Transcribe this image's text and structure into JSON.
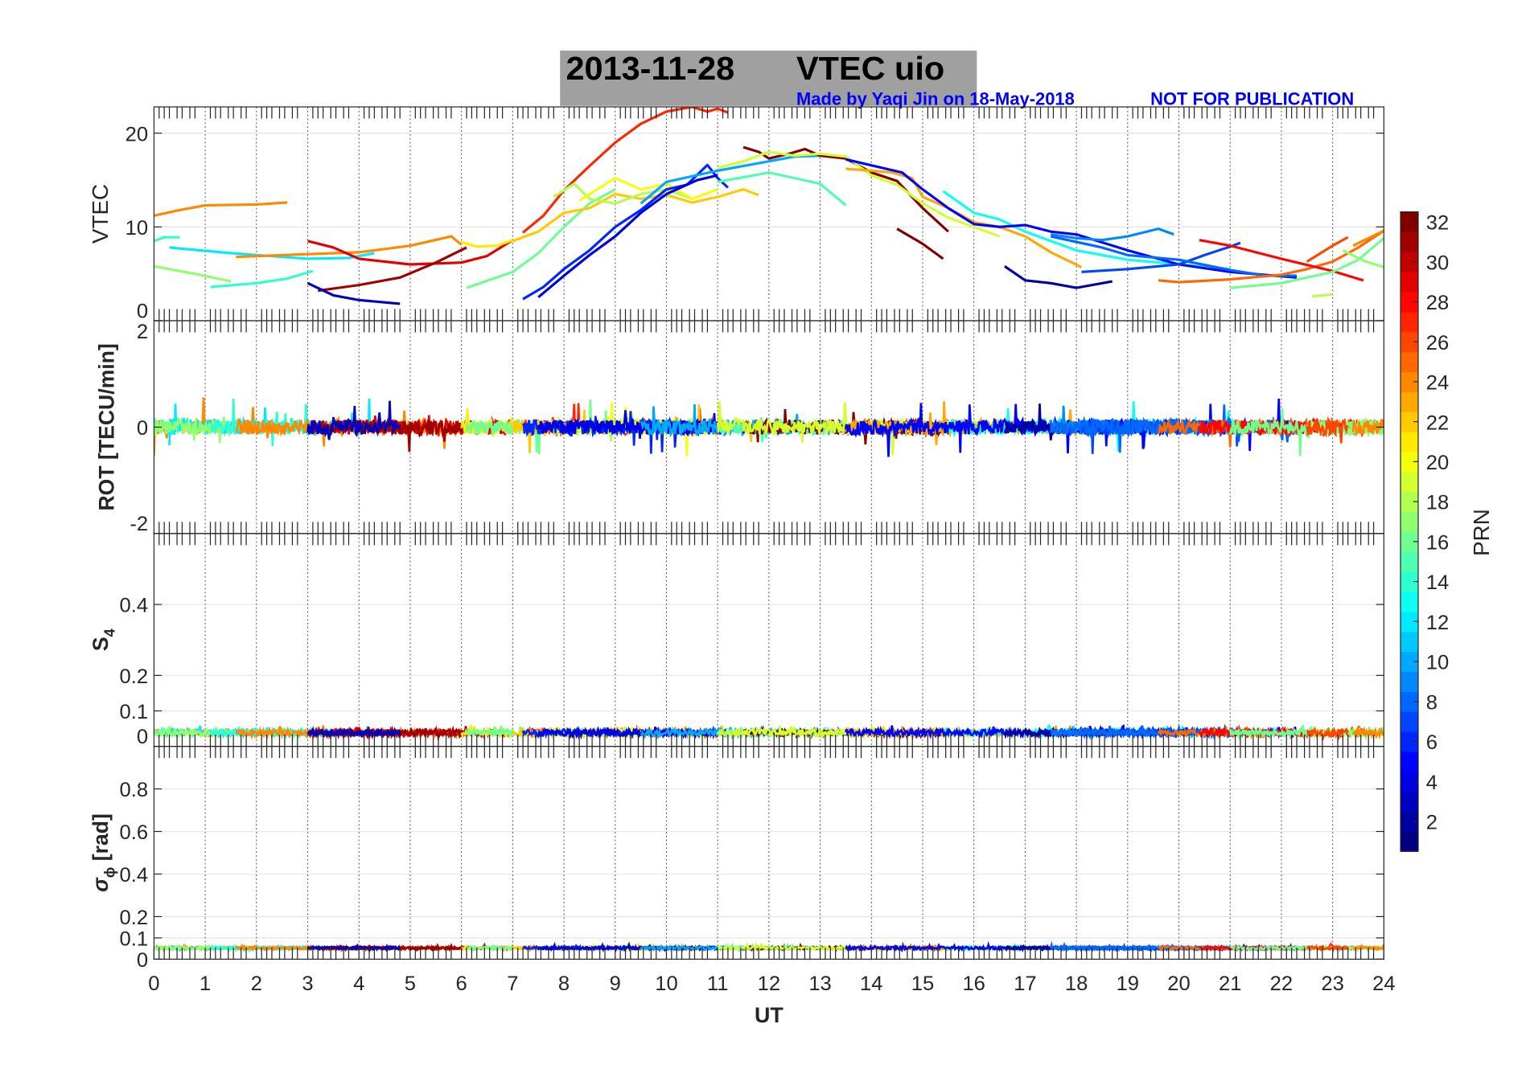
{
  "chart_data": {
    "type": "line",
    "title_date": "2013-11-28",
    "title_main": "VTEC  uio",
    "credit": "Made by Yaqi Jin on 18-May-2018",
    "notice": "NOT FOR PUBLICATION",
    "xlabel": "UT",
    "xlim": [
      0,
      24
    ],
    "xticks": [
      "0",
      "1",
      "2",
      "3",
      "4",
      "5",
      "6",
      "7",
      "8",
      "9",
      "10",
      "11",
      "12",
      "13",
      "14",
      "15",
      "16",
      "17",
      "18",
      "19",
      "20",
      "21",
      "22",
      "23",
      "24"
    ],
    "colorbar": {
      "label": "PRN",
      "range": [
        1,
        32
      ],
      "colormap": "jet",
      "ticks": [
        "2",
        "4",
        "6",
        "8",
        "10",
        "12",
        "14",
        "16",
        "18",
        "20",
        "22",
        "24",
        "26",
        "28",
        "30",
        "32"
      ]
    },
    "panels": [
      {
        "name": "vtec",
        "ylabel": "VTEC",
        "ylim": [
          0,
          22.8
        ],
        "yticks": [
          0,
          10,
          20
        ],
        "ytick_labels": [
          "0",
          "10",
          "20"
        ]
      },
      {
        "name": "rot",
        "ylabel": "ROT [TECU/min]",
        "ylim": [
          -2,
          2
        ],
        "yticks": [
          -2,
          0,
          2
        ],
        "ytick_labels": [
          "-2",
          "0",
          "2"
        ],
        "noise_amp": 0.14
      },
      {
        "name": "s4",
        "ylabel": "S",
        "ylabel_sub": "4",
        "ylim": [
          0,
          0.6
        ],
        "yticks": [
          0,
          0.1,
          0.2,
          0.4
        ],
        "ytick_labels": [
          "0",
          "0.1",
          "0.2",
          "0.4"
        ],
        "base": 0.035,
        "noise_amp": 0.012
      },
      {
        "name": "sigma",
        "ylabel": "σ",
        "ylabel_sub": "ϕ",
        "ylabel_unit": " [rad]",
        "ylim": [
          0,
          1
        ],
        "yticks": [
          0,
          0.1,
          0.2,
          0.4,
          0.6,
          0.8
        ],
        "ytick_labels": [
          "0",
          "0.1",
          "0.2",
          "0.4",
          "0.6",
          "0.8"
        ],
        "base": 0.05,
        "noise_amp": 0.008
      }
    ],
    "series": [
      {
        "prn": 24,
        "points": [
          [
            0,
            11.2
          ],
          [
            0.5,
            11.8
          ],
          [
            1,
            12.3
          ],
          [
            2,
            12.4
          ],
          [
            2.6,
            12.6
          ]
        ]
      },
      {
        "prn": 14,
        "points": [
          [
            0,
            8.5
          ],
          [
            0.2,
            8.9
          ],
          [
            0.5,
            8.9
          ]
        ]
      },
      {
        "prn": 12,
        "points": [
          [
            0.3,
            7.8
          ],
          [
            1.5,
            7.2
          ],
          [
            3,
            6.6
          ],
          [
            3.8,
            6.7
          ],
          [
            4.3,
            7.2
          ]
        ]
      },
      {
        "prn": 17,
        "points": [
          [
            0,
            5.8
          ],
          [
            0.8,
            5.0
          ],
          [
            1.5,
            4.2
          ]
        ]
      },
      {
        "prn": 14,
        "points": [
          [
            1.1,
            3.6
          ],
          [
            2,
            4.0
          ],
          [
            2.6,
            4.5
          ],
          [
            3.1,
            5.3
          ]
        ]
      },
      {
        "prn": 24,
        "points": [
          [
            1.6,
            6.8
          ],
          [
            3,
            7.1
          ],
          [
            4,
            7.3
          ],
          [
            5,
            8.0
          ],
          [
            5.8,
            9.0
          ],
          [
            6,
            8.1
          ]
        ]
      },
      {
        "prn": 29,
        "points": [
          [
            3,
            8.5
          ],
          [
            3.5,
            7.8
          ],
          [
            4,
            6.6
          ],
          [
            5,
            6.0
          ],
          [
            6,
            6.2
          ],
          [
            6.5,
            6.9
          ],
          [
            7,
            8.6
          ]
        ]
      },
      {
        "prn": 31,
        "points": [
          [
            3.2,
            3.2
          ],
          [
            4,
            3.8
          ],
          [
            4.8,
            4.6
          ],
          [
            5.5,
            6.2
          ],
          [
            6.1,
            7.8
          ]
        ]
      },
      {
        "prn": 3,
        "points": [
          [
            3,
            4.0
          ],
          [
            3.5,
            2.7
          ],
          [
            4,
            2.2
          ],
          [
            4.8,
            1.8
          ]
        ]
      },
      {
        "prn": 21,
        "points": [
          [
            6,
            8.4
          ],
          [
            6.3,
            7.9
          ],
          [
            6.7,
            8.0
          ],
          [
            7,
            8.6
          ]
        ]
      },
      {
        "prn": 16,
        "points": [
          [
            6.1,
            3.5
          ],
          [
            7,
            5.2
          ],
          [
            7.5,
            7.2
          ],
          [
            8,
            10.0
          ],
          [
            8.5,
            12.5
          ],
          [
            9,
            14.0
          ]
        ]
      },
      {
        "prn": 27,
        "points": [
          [
            7.2,
            9.4
          ],
          [
            7.6,
            11.2
          ],
          [
            8,
            13.9
          ],
          [
            8.5,
            16.5
          ],
          [
            9,
            19.0
          ],
          [
            9.5,
            21.0
          ],
          [
            10,
            22.3
          ],
          [
            10.5,
            22.8
          ],
          [
            10.8,
            22.3
          ],
          [
            11,
            22.6
          ],
          [
            11.2,
            22.2
          ]
        ]
      },
      {
        "prn": 22,
        "points": [
          [
            7,
            8.5
          ],
          [
            7.5,
            9.5
          ],
          [
            8,
            11.5
          ],
          [
            8.5,
            12.0
          ],
          [
            9,
            13.5
          ],
          [
            9.5,
            13.0
          ],
          [
            10,
            13.4
          ],
          [
            10.5,
            12.6
          ],
          [
            11,
            13.2
          ],
          [
            11.5,
            14.0
          ],
          [
            11.8,
            13.4
          ]
        ]
      },
      {
        "prn": 18,
        "points": [
          [
            7.8,
            13.2
          ],
          [
            8.2,
            14.6
          ],
          [
            8.5,
            13.0
          ],
          [
            9,
            12.5
          ],
          [
            9.5,
            13.5
          ],
          [
            10,
            14.0
          ],
          [
            10.5,
            13.0
          ]
        ]
      },
      {
        "prn": 20,
        "points": [
          [
            8.3,
            12.8
          ],
          [
            9,
            15.2
          ],
          [
            9.5,
            14.0
          ],
          [
            10,
            14.6
          ],
          [
            10.5,
            13.0
          ],
          [
            11,
            14.0
          ]
        ]
      },
      {
        "prn": 6,
        "points": [
          [
            7.2,
            2.3
          ],
          [
            7.6,
            3.6
          ],
          [
            8,
            5.5
          ],
          [
            8.5,
            7.5
          ],
          [
            9,
            10.0
          ],
          [
            9.5,
            11.8
          ],
          [
            10,
            14.0
          ],
          [
            10.4,
            14.5
          ],
          [
            10.8,
            16.6
          ],
          [
            11,
            15.2
          ],
          [
            11.2,
            14.2
          ]
        ]
      },
      {
        "prn": 4,
        "points": [
          [
            7.5,
            2.5
          ],
          [
            8,
            4.8
          ],
          [
            8.5,
            7.0
          ],
          [
            9,
            9.0
          ],
          [
            9.5,
            11.5
          ],
          [
            10,
            13.5
          ],
          [
            10.6,
            15.0
          ],
          [
            11,
            15.5
          ]
        ]
      },
      {
        "prn": 10,
        "points": [
          [
            9.5,
            12.5
          ],
          [
            10,
            14.8
          ],
          [
            11,
            16.0
          ],
          [
            12,
            17.0
          ],
          [
            12.5,
            17.5
          ],
          [
            13,
            17.6
          ]
        ]
      },
      {
        "prn": 15,
        "points": [
          [
            11,
            14.8
          ],
          [
            11.5,
            15.3
          ],
          [
            12,
            15.8
          ],
          [
            12.5,
            15.2
          ],
          [
            13,
            14.6
          ],
          [
            13.5,
            12.3
          ]
        ]
      },
      {
        "prn": 32,
        "points": [
          [
            11.5,
            18.5
          ],
          [
            11.8,
            18.0
          ],
          [
            12,
            17.3
          ],
          [
            12.4,
            17.8
          ],
          [
            12.7,
            18.3
          ],
          [
            13,
            17.6
          ],
          [
            13.5,
            17.3
          ],
          [
            14,
            15.8
          ],
          [
            14.5,
            14.9
          ],
          [
            15,
            12.0
          ],
          [
            15.5,
            9.5
          ]
        ]
      },
      {
        "prn": 32,
        "points": [
          [
            14.5,
            9.8
          ],
          [
            15,
            8.2
          ],
          [
            15.4,
            6.6
          ]
        ]
      },
      {
        "prn": 19,
        "points": [
          [
            11,
            16.3
          ],
          [
            11.5,
            17.0
          ],
          [
            12,
            18.0
          ],
          [
            12.5,
            17.6
          ],
          [
            13,
            17.8
          ],
          [
            13.5,
            17.5
          ],
          [
            14,
            15.5
          ],
          [
            14.5,
            14.5
          ],
          [
            15,
            12.5
          ],
          [
            15.5,
            11.0
          ],
          [
            16,
            10.0
          ],
          [
            16.5,
            9.0
          ]
        ]
      },
      {
        "prn": 23,
        "points": [
          [
            13.5,
            16.2
          ],
          [
            14,
            16.0
          ],
          [
            14.4,
            15.8
          ],
          [
            14.8,
            15.2
          ],
          [
            15,
            13.2
          ],
          [
            15.5,
            12.0
          ],
          [
            16,
            10.5
          ],
          [
            16.5,
            10.0
          ],
          [
            17,
            9.0
          ],
          [
            17.5,
            7.3
          ],
          [
            18.1,
            5.7
          ]
        ]
      },
      {
        "prn": 13,
        "points": [
          [
            15.4,
            13.8
          ],
          [
            16,
            11.5
          ],
          [
            16.5,
            10.8
          ],
          [
            17,
            9.5
          ],
          [
            17.5,
            8.5
          ],
          [
            18,
            7.5
          ],
          [
            19,
            6.5
          ],
          [
            20,
            6.0
          ],
          [
            21,
            5.5
          ]
        ]
      },
      {
        "prn": 5,
        "points": [
          [
            13.5,
            17.2
          ],
          [
            14.6,
            15.8
          ],
          [
            15,
            14.0
          ],
          [
            15.5,
            12.0
          ],
          [
            16,
            10.3
          ],
          [
            16.5,
            10.0
          ],
          [
            17,
            10.2
          ],
          [
            17.5,
            9.5
          ],
          [
            18,
            9.2
          ],
          [
            19,
            7.5
          ],
          [
            20,
            6.0
          ],
          [
            21,
            5.2
          ],
          [
            22.3,
            4.6
          ]
        ]
      },
      {
        "prn": 2,
        "points": [
          [
            16.6,
            5.8
          ],
          [
            17,
            4.3
          ],
          [
            17.5,
            4.0
          ],
          [
            18,
            3.5
          ],
          [
            18.7,
            4.2
          ]
        ]
      },
      {
        "prn": 9,
        "points": [
          [
            17.5,
            9.2
          ],
          [
            18,
            8.8
          ],
          [
            18.5,
            8.6
          ],
          [
            19,
            9.0
          ],
          [
            19.6,
            9.8
          ],
          [
            19.9,
            9.2
          ]
        ]
      },
      {
        "prn": 7,
        "points": [
          [
            18.1,
            5.2
          ],
          [
            19,
            5.5
          ],
          [
            20,
            6.0
          ],
          [
            20.5,
            7.0
          ],
          [
            21,
            7.9
          ],
          [
            21.2,
            8.3
          ]
        ]
      },
      {
        "prn": 8,
        "points": [
          [
            17.5,
            9.0
          ],
          [
            18.5,
            7.8
          ],
          [
            19,
            7.0
          ],
          [
            20,
            6.5
          ],
          [
            21,
            5.4
          ],
          [
            21.7,
            4.8
          ],
          [
            22.3,
            4.8
          ]
        ]
      },
      {
        "prn": 25,
        "points": [
          [
            19.6,
            4.3
          ],
          [
            20,
            4.1
          ],
          [
            21,
            4.4
          ],
          [
            22,
            4.9
          ],
          [
            22.5,
            5.5
          ],
          [
            23,
            6.3
          ],
          [
            23.5,
            7.8
          ],
          [
            24,
            9.6
          ]
        ]
      },
      {
        "prn": 28,
        "points": [
          [
            20.4,
            8.6
          ],
          [
            21,
            8.0
          ],
          [
            22,
            6.6
          ],
          [
            23,
            5.3
          ],
          [
            23.6,
            4.3
          ]
        ]
      },
      {
        "prn": 16,
        "points": [
          [
            21,
            3.5
          ],
          [
            22,
            4.0
          ],
          [
            23,
            5.2
          ],
          [
            23.5,
            6.5
          ],
          [
            24,
            8.8
          ]
        ]
      },
      {
        "prn": 17,
        "points": [
          [
            23.2,
            7.5
          ],
          [
            23.6,
            6.4
          ],
          [
            24,
            5.7
          ]
        ]
      },
      {
        "prn": 18,
        "points": [
          [
            22.6,
            2.6
          ],
          [
            23,
            2.8
          ]
        ]
      },
      {
        "prn": 26,
        "points": [
          [
            22.5,
            6.3
          ],
          [
            23,
            8.0
          ],
          [
            23.3,
            8.9
          ]
        ]
      },
      {
        "prn": 24,
        "points": [
          [
            23.4,
            8.0
          ],
          [
            24,
            9.6
          ]
        ]
      }
    ]
  }
}
